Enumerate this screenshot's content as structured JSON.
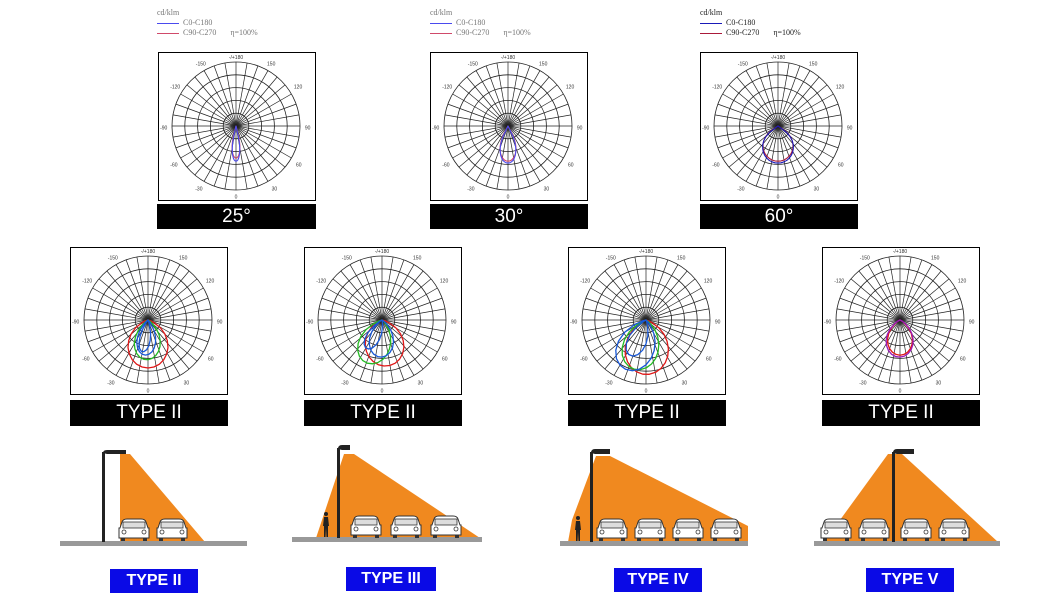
{
  "beam_charts": [
    {
      "legend": {
        "unit": "cd/klm",
        "series1": "C0-C180",
        "series2": "C90-C270",
        "efficiency": "η=100%"
      },
      "label": "25°",
      "series1_color": "#4a4aee",
      "series2_color": "#d04a6a",
      "dark": false,
      "angle_labels": {
        "top": "-/+180",
        "l150": "-150",
        "r150": "150",
        "l120": "-120",
        "r120": "120",
        "l90": "-90",
        "r90": "90",
        "l60": "-60",
        "r60": "60",
        "l30": "-30",
        "r30": "30",
        "bottom": "0"
      }
    },
    {
      "legend": {
        "unit": "cd/klm",
        "series1": "C0-C180",
        "series2": "C90-C270",
        "efficiency": "η=100%"
      },
      "label": "30°",
      "series1_color": "#4a4aee",
      "series2_color": "#d04a6a",
      "dark": false,
      "angle_labels": {
        "top": "-/+180",
        "l150": "-150",
        "r150": "150",
        "l120": "-120",
        "r120": "120",
        "l90": "-90",
        "r90": "90",
        "l60": "-60",
        "r60": "60",
        "l30": "-30",
        "r30": "30",
        "bottom": "0"
      }
    },
    {
      "legend": {
        "unit": "cd/klm",
        "series1": "C0-C180",
        "series2": "C90-C270",
        "efficiency": "η=100%"
      },
      "label": "60°",
      "series1_color": "#1a1ab8",
      "series2_color": "#aa1a3a",
      "dark": true,
      "angle_labels": {
        "top": "-/+180",
        "l150": "-150",
        "r150": "150",
        "l120": "-120",
        "r120": "120",
        "l90": "-90",
        "r90": "90",
        "l60": "-60",
        "r60": "60",
        "l30": "-30",
        "r30": "30",
        "bottom": "0"
      }
    }
  ],
  "type_charts": [
    {
      "label": "TYPE II"
    },
    {
      "label": "TYPE II"
    },
    {
      "label": "TYPE II"
    },
    {
      "label": "TYPE II"
    }
  ],
  "scenes": [
    {
      "label": "TYPE II"
    },
    {
      "label": "TYPE III"
    },
    {
      "label": "TYPE IV"
    },
    {
      "label": "TYPE V"
    }
  ],
  "colors": {
    "light_fill": "#f0891f",
    "ground": "#999999",
    "pole": "#222222",
    "label_blue": "#0a0ae6",
    "label_black": "#000000"
  }
}
